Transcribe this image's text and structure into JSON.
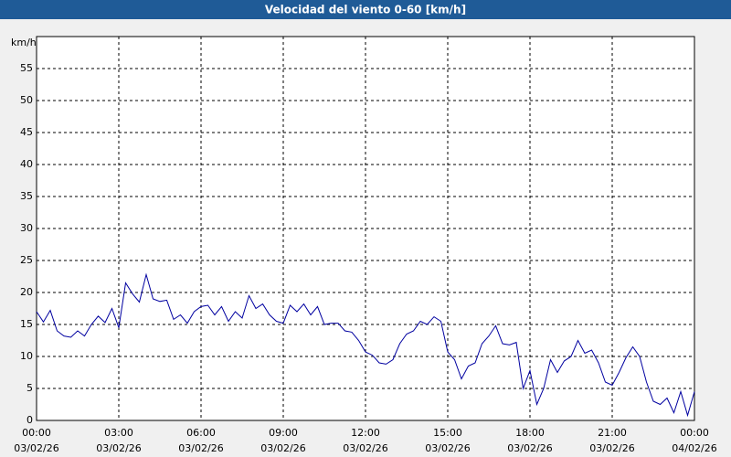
{
  "chart_data": {
    "type": "line",
    "title": "Velocidad del viento 0-60 [km/h]",
    "ylabel": "km/h",
    "x": [
      0,
      0.25,
      0.5,
      0.75,
      1,
      1.25,
      1.5,
      1.75,
      2,
      2.25,
      2.5,
      2.75,
      3,
      3.25,
      3.5,
      3.75,
      4,
      4.25,
      4.5,
      4.75,
      5,
      5.25,
      5.5,
      5.75,
      6,
      6.25,
      6.5,
      6.75,
      7,
      7.25,
      7.5,
      7.75,
      8,
      8.25,
      8.5,
      8.75,
      9,
      9.25,
      9.5,
      9.75,
      10,
      10.25,
      10.5,
      10.75,
      11,
      11.25,
      11.5,
      11.75,
      12,
      12.25,
      12.5,
      12.75,
      13,
      13.25,
      13.5,
      13.75,
      14,
      14.25,
      14.5,
      14.75,
      15,
      15.25,
      15.5,
      15.75,
      16,
      16.25,
      16.5,
      16.75,
      17,
      17.25,
      17.5,
      17.75,
      18,
      18.25,
      18.5,
      18.75,
      19,
      19.25,
      19.5,
      19.75,
      20,
      20.25,
      20.5,
      20.75,
      21,
      21.25,
      21.5,
      21.75,
      22,
      22.25,
      22.5,
      22.75,
      23,
      23.25,
      23.5,
      23.75,
      24
    ],
    "values": [
      17,
      15.4,
      17.2,
      14,
      13.2,
      13,
      14,
      13.2,
      15,
      16.3,
      15.3,
      17.5,
      14.5,
      21.5,
      19.8,
      18.5,
      22.8,
      19,
      18.6,
      18.8,
      15.8,
      16.5,
      15.2,
      17,
      17.8,
      18,
      16.5,
      17.8,
      15.5,
      17,
      16,
      19.5,
      17.5,
      18.2,
      16.5,
      15.5,
      15.2,
      18,
      17,
      18.2,
      16.5,
      17.8,
      15,
      15.2,
      15.2,
      14,
      13.8,
      12.5,
      10.7,
      10.2,
      9,
      8.8,
      9.5,
      12,
      13.5,
      14,
      15.5,
      15,
      16.2,
      15.5,
      10.7,
      9.5,
      6.5,
      8.5,
      9,
      12,
      13.2,
      14.8,
      12,
      11.8,
      12.2,
      5,
      7.8,
      2.5,
      5,
      9.5,
      7.5,
      9.3,
      10,
      12.5,
      10.5,
      11,
      9,
      6,
      5.5,
      7.5,
      9.8,
      11.5,
      10,
      6,
      3,
      2.5,
      3.5,
      1.2,
      4.5,
      0.8,
      4.5
    ],
    "color": "#0000a0",
    "xlim": [
      0,
      24
    ],
    "xticks": [
      {
        "value": 0,
        "label": "00:00",
        "date": "03/02/26"
      },
      {
        "value": 3,
        "label": "03:00",
        "date": "03/02/26"
      },
      {
        "value": 6,
        "label": "06:00",
        "date": "03/02/26"
      },
      {
        "value": 9,
        "label": "09:00",
        "date": "03/02/26"
      },
      {
        "value": 12,
        "label": "12:00",
        "date": "03/02/26"
      },
      {
        "value": 15,
        "label": "15:00",
        "date": "03/02/26"
      },
      {
        "value": 18,
        "label": "18:00",
        "date": "03/02/26"
      },
      {
        "value": 21,
        "label": "21:00",
        "date": "03/02/26"
      },
      {
        "value": 24,
        "label": "00:00",
        "date": "04/02/26"
      }
    ],
    "ylim": [
      0,
      60
    ],
    "yticks": [
      0,
      5,
      10,
      15,
      20,
      25,
      30,
      35,
      40,
      45,
      50,
      55
    ],
    "grid": true
  }
}
